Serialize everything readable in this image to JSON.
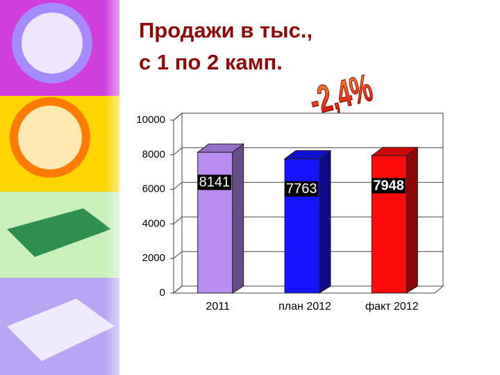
{
  "chart_data": {
    "type": "bar3d",
    "title": [
      "Продажи в тыс.,",
      "с 1 по 2 камп."
    ],
    "annotation": "-2,4%",
    "categories": [
      "2011",
      "план 2012",
      "факт 2012"
    ],
    "values": [
      8141,
      7763,
      7948
    ],
    "colors": [
      "#b98cf2",
      "#1414ff",
      "#ff0a0a"
    ],
    "ylim": [
      0,
      10000
    ],
    "yticks": [
      0,
      2000,
      4000,
      6000,
      8000,
      10000
    ],
    "grid": true
  }
}
